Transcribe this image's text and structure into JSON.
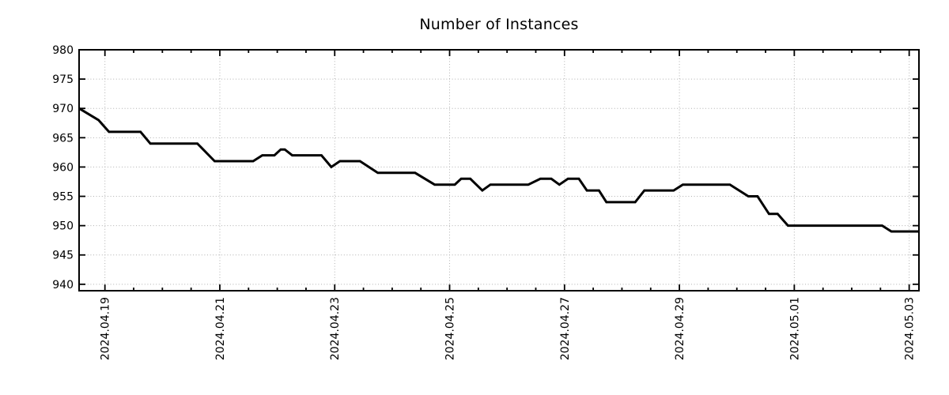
{
  "page": {
    "background": "#ffffff"
  },
  "chart_data": {
    "type": "line",
    "title": "Number of Instances",
    "xlabel": "",
    "ylabel": "",
    "legend": "none",
    "grid": "dotted gridlines at major ticks, both axes",
    "line_color": "#000000",
    "line_width": 3,
    "grid_color": "#b0b0b0",
    "axis_color": "#000000",
    "text_color": "#000000",
    "x_unit": "days since 2024-04-18 00:00",
    "xlim": [
      0.55,
      15.17
    ],
    "ylim": [
      938.9,
      980
    ],
    "x_minor_interval": 0.5,
    "x_ticks": [
      {
        "pos": 1,
        "label": "2024.04.19"
      },
      {
        "pos": 3,
        "label": "2024.04.21"
      },
      {
        "pos": 5,
        "label": "2024.04.23"
      },
      {
        "pos": 7,
        "label": "2024.04.25"
      },
      {
        "pos": 9,
        "label": "2024.04.27"
      },
      {
        "pos": 11,
        "label": "2024.04.29"
      },
      {
        "pos": 13,
        "label": "2024.05.01"
      },
      {
        "pos": 15,
        "label": "2024.05.03"
      }
    ],
    "y_ticks": [
      {
        "pos": 940,
        "label": "940"
      },
      {
        "pos": 945,
        "label": "945"
      },
      {
        "pos": 950,
        "label": "950"
      },
      {
        "pos": 955,
        "label": "955"
      },
      {
        "pos": 960,
        "label": "960"
      },
      {
        "pos": 965,
        "label": "965"
      },
      {
        "pos": 970,
        "label": "970"
      },
      {
        "pos": 975,
        "label": "975"
      },
      {
        "pos": 980,
        "label": "980"
      }
    ],
    "series": [
      {
        "name": "instances",
        "points": [
          [
            0.55,
            970
          ],
          [
            0.89,
            968
          ],
          [
            1.07,
            966
          ],
          [
            1.62,
            966
          ],
          [
            1.79,
            964
          ],
          [
            2.61,
            964
          ],
          [
            2.91,
            961
          ],
          [
            3.58,
            961
          ],
          [
            3.74,
            962
          ],
          [
            3.95,
            962
          ],
          [
            4.06,
            963
          ],
          [
            4.13,
            963
          ],
          [
            4.26,
            962
          ],
          [
            4.77,
            962
          ],
          [
            4.94,
            960
          ],
          [
            5.09,
            961
          ],
          [
            5.44,
            961
          ],
          [
            5.75,
            959
          ],
          [
            6.4,
            959
          ],
          [
            6.74,
            957
          ],
          [
            7.09,
            957
          ],
          [
            7.2,
            958
          ],
          [
            7.36,
            958
          ],
          [
            7.57,
            956
          ],
          [
            7.71,
            957
          ],
          [
            8.37,
            957
          ],
          [
            8.58,
            958
          ],
          [
            8.77,
            958
          ],
          [
            8.91,
            957
          ],
          [
            9.06,
            958
          ],
          [
            9.25,
            958
          ],
          [
            9.39,
            956
          ],
          [
            9.6,
            956
          ],
          [
            9.73,
            954
          ],
          [
            10.23,
            954
          ],
          [
            10.39,
            956
          ],
          [
            10.9,
            956
          ],
          [
            11.06,
            957
          ],
          [
            11.88,
            957
          ],
          [
            12.2,
            955
          ],
          [
            12.36,
            955
          ],
          [
            12.56,
            952
          ],
          [
            12.71,
            952
          ],
          [
            12.89,
            950
          ],
          [
            14.53,
            950
          ],
          [
            14.69,
            949
          ],
          [
            15.17,
            949
          ]
        ]
      }
    ]
  }
}
